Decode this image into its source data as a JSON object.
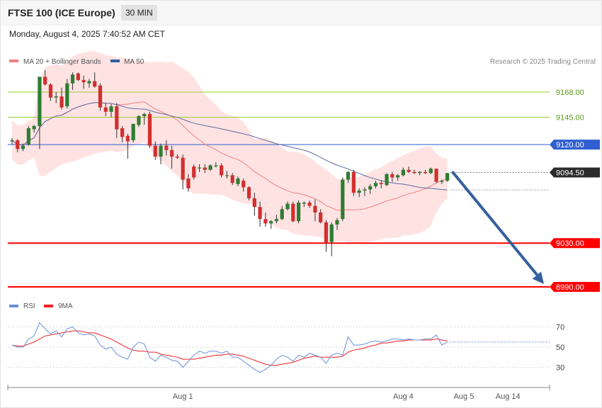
{
  "header": {
    "title": "FTSE 100 (ICE Europe)",
    "timeframe": "30 MIN",
    "datetime": "Monday, August 4, 2025 7:40:52 AM CET"
  },
  "legend": {
    "ma20": "MA 20 + Bollinger Bands",
    "ma50": "MA 50",
    "rsi": "RSI",
    "rsi_ma": "9MA",
    "copyright": "Research © 2025 Trading Central"
  },
  "colors": {
    "up": "#2e7d32",
    "down": "#d32f2f",
    "band_fill": "#ffe3e3",
    "ma20": "#f08080",
    "ma50": "#5b6aa0",
    "resistance_green": "#9acd32",
    "pivot_blue": "#2f5fd0",
    "support_red": "#ff0000",
    "arrow": "#34609e",
    "rsi_line": "#6b8fd6",
    "rsi_ma": "#ee2222"
  },
  "chart_data": {
    "type": "candlestick",
    "instrument": "FTSE 100 (ICE Europe)",
    "timeframe": "30 MIN",
    "price_range": [
      8990,
      9180
    ],
    "levels": [
      {
        "value": 9168.0,
        "label": "9168.00",
        "kind": "resistance"
      },
      {
        "value": 9145.0,
        "label": "9145.00",
        "kind": "resistance"
      },
      {
        "value": 9120.0,
        "label": "9120.00",
        "kind": "pivot"
      },
      {
        "value": 9030.0,
        "label": "9030.00",
        "kind": "support"
      },
      {
        "value": 8990.0,
        "label": "8990.00",
        "kind": "support"
      }
    ],
    "last_price": {
      "value": 9094.5,
      "label": "9094.50"
    },
    "projection": {
      "from": 9094.5,
      "to": 8990
    },
    "x_labels": [
      {
        "text": "Aug 1",
        "index": 31
      },
      {
        "text": "Aug 4",
        "index": 71
      },
      {
        "text": "Aug 5",
        "index": 82
      },
      {
        "text": "Aug 14",
        "index": 90
      }
    ],
    "candles": [
      [
        9123,
        9126,
        9120,
        9124
      ],
      [
        9124,
        9125,
        9113,
        9116
      ],
      [
        9116,
        9121,
        9114,
        9119
      ],
      [
        9120,
        9137,
        9119,
        9135
      ],
      [
        9134,
        9138,
        9131,
        9137
      ],
      [
        9137,
        9182,
        9116,
        9182
      ],
      [
        9182,
        9188,
        9174,
        9175
      ],
      [
        9175,
        9176,
        9160,
        9163
      ],
      [
        9163,
        9168,
        9158,
        9164
      ],
      [
        9164,
        9172,
        9152,
        9154
      ],
      [
        9155,
        9180,
        9153,
        9176
      ],
      [
        9176,
        9186,
        9170,
        9184
      ],
      [
        9185,
        9186,
        9178,
        9179
      ],
      [
        9179,
        9183,
        9171,
        9177
      ],
      [
        9176,
        9180,
        9172,
        9178
      ],
      [
        9178,
        9186,
        9172,
        9173
      ],
      [
        9174,
        9176,
        9151,
        9154
      ],
      [
        9154,
        9158,
        9146,
        9150
      ],
      [
        9150,
        9157,
        9145,
        9155
      ],
      [
        9155,
        9158,
        9126,
        9134
      ],
      [
        9135,
        9137,
        9122,
        9127
      ],
      [
        9128,
        9130,
        9107,
        9123
      ],
      [
        9124,
        9139,
        9122,
        9139
      ],
      [
        9138,
        9147,
        9136,
        9146
      ],
      [
        9146,
        9149,
        9138,
        9148
      ],
      [
        9148,
        9150,
        9117,
        9119
      ],
      [
        9119,
        9123,
        9106,
        9109
      ],
      [
        9109,
        9121,
        9102,
        9119
      ],
      [
        9119,
        9124,
        9110,
        9115
      ],
      [
        9115,
        9119,
        9098,
        9109
      ],
      [
        9109,
        9111,
        9107,
        9108
      ],
      [
        9108,
        9111,
        9079,
        9088
      ],
      [
        9089,
        9093,
        9077,
        9080
      ],
      [
        9100,
        9102,
        9088,
        9090
      ],
      [
        9099,
        9102,
        9095,
        9099
      ],
      [
        9099,
        9102,
        9094,
        9097
      ],
      [
        9097,
        9102,
        9096,
        9101
      ],
      [
        9101,
        9104,
        9099,
        9101
      ],
      [
        9101,
        9103,
        9090,
        9092
      ],
      [
        9092,
        9096,
        9089,
        9092
      ],
      [
        9092,
        9094,
        9083,
        9085
      ],
      [
        9084,
        9091,
        9082,
        9089
      ],
      [
        9087,
        9089,
        9077,
        9081
      ],
      [
        9081,
        9082,
        9069,
        9071
      ],
      [
        9071,
        9076,
        9055,
        9063
      ],
      [
        9063,
        9068,
        9045,
        9052
      ],
      [
        9052,
        9058,
        9045,
        9048
      ],
      [
        9048,
        9051,
        9043,
        9050
      ],
      [
        9050,
        9056,
        9048,
        9052
      ],
      [
        9052,
        9064,
        9051,
        9061
      ],
      [
        9061,
        9068,
        9060,
        9066
      ],
      [
        9066,
        9068,
        9049,
        9050
      ],
      [
        9050,
        9069,
        9048,
        9067
      ],
      [
        9066,
        9068,
        9063,
        9067
      ],
      [
        9067,
        9069,
        9062,
        9064
      ],
      [
        9064,
        9070,
        9050,
        9058
      ],
      [
        9058,
        9061,
        9048,
        9049
      ],
      [
        9049,
        9051,
        9022,
        9030
      ],
      [
        9031,
        9049,
        9018,
        9047
      ],
      [
        9047,
        9053,
        9042,
        9051
      ],
      [
        9052,
        9090,
        9050,
        9088
      ],
      [
        9088,
        9096,
        9085,
        9095
      ],
      [
        9095,
        9097,
        9073,
        9076
      ],
      [
        9076,
        9080,
        9072,
        9078
      ],
      [
        9078,
        9081,
        9073,
        9079
      ],
      [
        9079,
        9084,
        9075,
        9082
      ],
      [
        9082,
        9087,
        9080,
        9085
      ],
      [
        9085,
        9087,
        9080,
        9084
      ],
      [
        9083,
        9094,
        9082,
        9093
      ],
      [
        9093,
        9095,
        9086,
        9090
      ],
      [
        9090,
        9093,
        9087,
        9092
      ],
      [
        9092,
        9099,
        9091,
        9097
      ],
      [
        9097,
        9100,
        9094,
        9095
      ],
      [
        9095,
        9097,
        9093,
        9094
      ],
      [
        9094,
        9096,
        9092,
        9095
      ],
      [
        9095,
        9097,
        9093,
        9094
      ],
      [
        9094,
        9099,
        9093,
        9098
      ],
      [
        9098,
        9098,
        9085,
        9086
      ],
      [
        9086,
        9088,
        9084,
        9087
      ],
      [
        9087,
        9094,
        9086,
        9094
      ]
    ],
    "rsi": {
      "levels": [
        70,
        50,
        30
      ],
      "ylim": [
        15,
        85
      ],
      "values": [
        52,
        50,
        50,
        58,
        61,
        74,
        68,
        63,
        66,
        60,
        68,
        70,
        64,
        62,
        63,
        61,
        52,
        48,
        50,
        43,
        40,
        38,
        50,
        55,
        53,
        40,
        36,
        42,
        40,
        37,
        36,
        30,
        36,
        42,
        46,
        44,
        46,
        46,
        44,
        46,
        40,
        40,
        36,
        32,
        28,
        25,
        28,
        32,
        38,
        42,
        40,
        36,
        42,
        40,
        44,
        42,
        40,
        34,
        42,
        44,
        42,
        60,
        52,
        52,
        53,
        55,
        56,
        55,
        56,
        58,
        58,
        57,
        58,
        57,
        57,
        58,
        58,
        62,
        52,
        55
      ],
      "ma_values": [
        52,
        51,
        51,
        53,
        55,
        58,
        61,
        62,
        63,
        64,
        65,
        66,
        66,
        65,
        64,
        64,
        62,
        60,
        58,
        55,
        52,
        49,
        47,
        46,
        46,
        45,
        45,
        43,
        42,
        41,
        40,
        38,
        38,
        38,
        39,
        40,
        41,
        42,
        42,
        43,
        43,
        42,
        41,
        39,
        37,
        35,
        33,
        32,
        32,
        33,
        34,
        35,
        37,
        39,
        40,
        41,
        40,
        40,
        40,
        40,
        41,
        45,
        47,
        48,
        49,
        51,
        52,
        54,
        54,
        55,
        56,
        56,
        57,
        57,
        57,
        57,
        57,
        58,
        57,
        56
      ]
    }
  }
}
